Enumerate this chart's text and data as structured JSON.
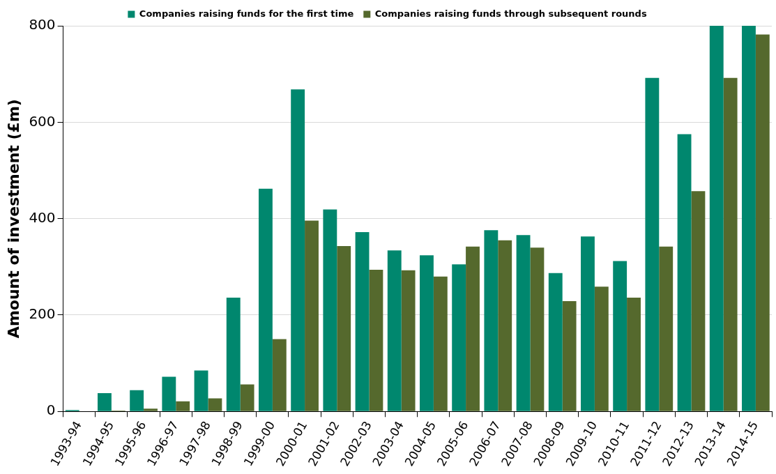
{
  "chart_data": {
    "type": "bar",
    "ylabel": "Amount of investment (£m)",
    "categories": [
      "1993-94",
      "1994-95",
      "1995-96",
      "1996-97",
      "1997-98",
      "1998-99",
      "1999-00",
      "2000-01",
      "2001-02",
      "2002-03",
      "2003-04",
      "2004-05",
      "2005-06",
      "2006-07",
      "2007-08",
      "2008-09",
      "2009-10",
      "2010-11",
      "2011-12",
      "2012-13",
      "2013-14",
      "2014-15"
    ],
    "series": [
      {
        "name": "Companies raising funds for the first time",
        "color": "#00876e",
        "values": [
          3,
          38,
          44,
          72,
          85,
          236,
          462,
          668,
          419,
          372,
          334,
          324,
          305,
          376,
          366,
          287,
          363,
          312,
          692,
          575,
          800,
          800
        ]
      },
      {
        "name": "Companies raising funds through subsequent rounds",
        "color": "#55692d",
        "values": [
          0,
          2,
          6,
          21,
          27,
          56,
          150,
          396,
          343,
          294,
          293,
          280,
          342,
          355,
          340,
          229,
          259,
          236,
          342,
          457,
          692,
          782
        ]
      }
    ],
    "ylim": [
      0,
      800
    ],
    "yticks": [
      0,
      200,
      400,
      600,
      800
    ],
    "grid": "y",
    "legend": "top"
  }
}
